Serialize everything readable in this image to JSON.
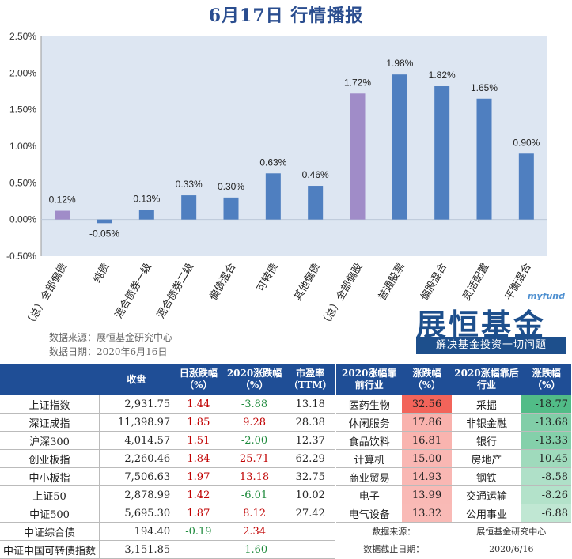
{
  "title": "6月17日  行情播报",
  "chart_data": {
    "type": "bar",
    "categories": [
      "（总）全部偏债",
      "纯债",
      "混合债券一级",
      "混合债券二级",
      "偏债混合",
      "可转债",
      "其他偏债",
      "（总）全部偏股",
      "普通股票",
      "偏股混合",
      "灵活配置",
      "平衡混合"
    ],
    "values": [
      0.12,
      -0.05,
      0.13,
      0.33,
      0.3,
      0.63,
      0.46,
      1.72,
      1.98,
      1.82,
      1.65,
      0.9
    ],
    "value_labels": [
      "0.12%",
      "-0.05%",
      "0.13%",
      "0.33%",
      "0.30%",
      "0.63%",
      "0.46%",
      "1.72%",
      "1.98%",
      "1.82%",
      "1.65%",
      "0.90%"
    ],
    "highlight": [
      true,
      false,
      false,
      false,
      false,
      false,
      false,
      true,
      false,
      false,
      false,
      false
    ],
    "y_ticks": [
      -0.5,
      0,
      0.5,
      1.0,
      1.5,
      2.0,
      2.5
    ],
    "y_tick_labels": [
      "-0.50%",
      "0.00%",
      "0.50%",
      "1.00%",
      "1.50%",
      "2.00%",
      "2.50%"
    ],
    "ylim": [
      -0.5,
      2.5
    ],
    "colors": {
      "bar": "#4f7fc0",
      "highlight": "#a08cc8",
      "plot_bg": "#dde6f2"
    },
    "grid": false
  },
  "source": {
    "line1": "数据来源：展恒基金研究中心",
    "line2": "数据日期：2020年6月16日"
  },
  "brand": {
    "myfund": "myfund",
    "logo": "展恒基金",
    "slogan": "解决基金投资一切问题"
  },
  "index_table": {
    "headers": [
      "",
      "收盘",
      "日涨跌幅（%）",
      "2020涨跌幅（%）",
      "市盈率（TTM）"
    ],
    "rows": [
      {
        "name": "上证指数",
        "close": "2,931.75",
        "day": "1.44",
        "ytd": "-3.88",
        "pe": "13.18"
      },
      {
        "name": "深证成指",
        "close": "11,398.97",
        "day": "1.85",
        "ytd": "9.28",
        "pe": "28.38"
      },
      {
        "name": "沪深300",
        "close": "4,014.57",
        "day": "1.51",
        "ytd": "-2.00",
        "pe": "12.37"
      },
      {
        "name": "创业板指",
        "close": "2,260.46",
        "day": "1.84",
        "ytd": "25.71",
        "pe": "62.29"
      },
      {
        "name": "中小板指",
        "close": "7,506.63",
        "day": "1.97",
        "ytd": "13.18",
        "pe": "32.75"
      },
      {
        "name": "上证50",
        "close": "2,878.99",
        "day": "1.42",
        "ytd": "-6.01",
        "pe": "10.02"
      },
      {
        "name": "中证500",
        "close": "5,695.30",
        "day": "1.87",
        "ytd": "8.12",
        "pe": "27.42"
      },
      {
        "name": "中证综合债",
        "close": "194.40",
        "day": "-0.19",
        "ytd": "2.34",
        "pe": ""
      },
      {
        "name": "中证中国可转债指数",
        "close": "3,151.85",
        "day": "-",
        "ytd": "-1.60",
        "pe": ""
      }
    ]
  },
  "industry_table": {
    "headers": [
      "2020涨幅靠前行业",
      "涨跌幅（%）",
      "2020涨幅靠后行业",
      "涨跌幅（%）"
    ],
    "rows": [
      {
        "top": "医药生物",
        "top_v": "32.56",
        "bot": "采掘",
        "bot_v": "-18.77"
      },
      {
        "top": "休闲服务",
        "top_v": "17.86",
        "bot": "非银金融",
        "bot_v": "-13.68"
      },
      {
        "top": "食品饮料",
        "top_v": "16.81",
        "bot": "银行",
        "bot_v": "-13.33"
      },
      {
        "top": "计算机",
        "top_v": "15.00",
        "bot": "房地产",
        "bot_v": "-10.45"
      },
      {
        "top": "商业贸易",
        "top_v": "14.93",
        "bot": "钢铁",
        "bot_v": "-8.58"
      },
      {
        "top": "电子",
        "top_v": "13.99",
        "bot": "交通运输",
        "bot_v": "-8.26"
      },
      {
        "top": "电气设备",
        "top_v": "13.32",
        "bot": "公用事业",
        "bot_v": "-6.88"
      }
    ],
    "footer": {
      "source_label": "数据来源：",
      "source_value": "展恒基金研究中心",
      "date_label": "数据截止日期：",
      "date_value": "2020/6/16"
    }
  }
}
